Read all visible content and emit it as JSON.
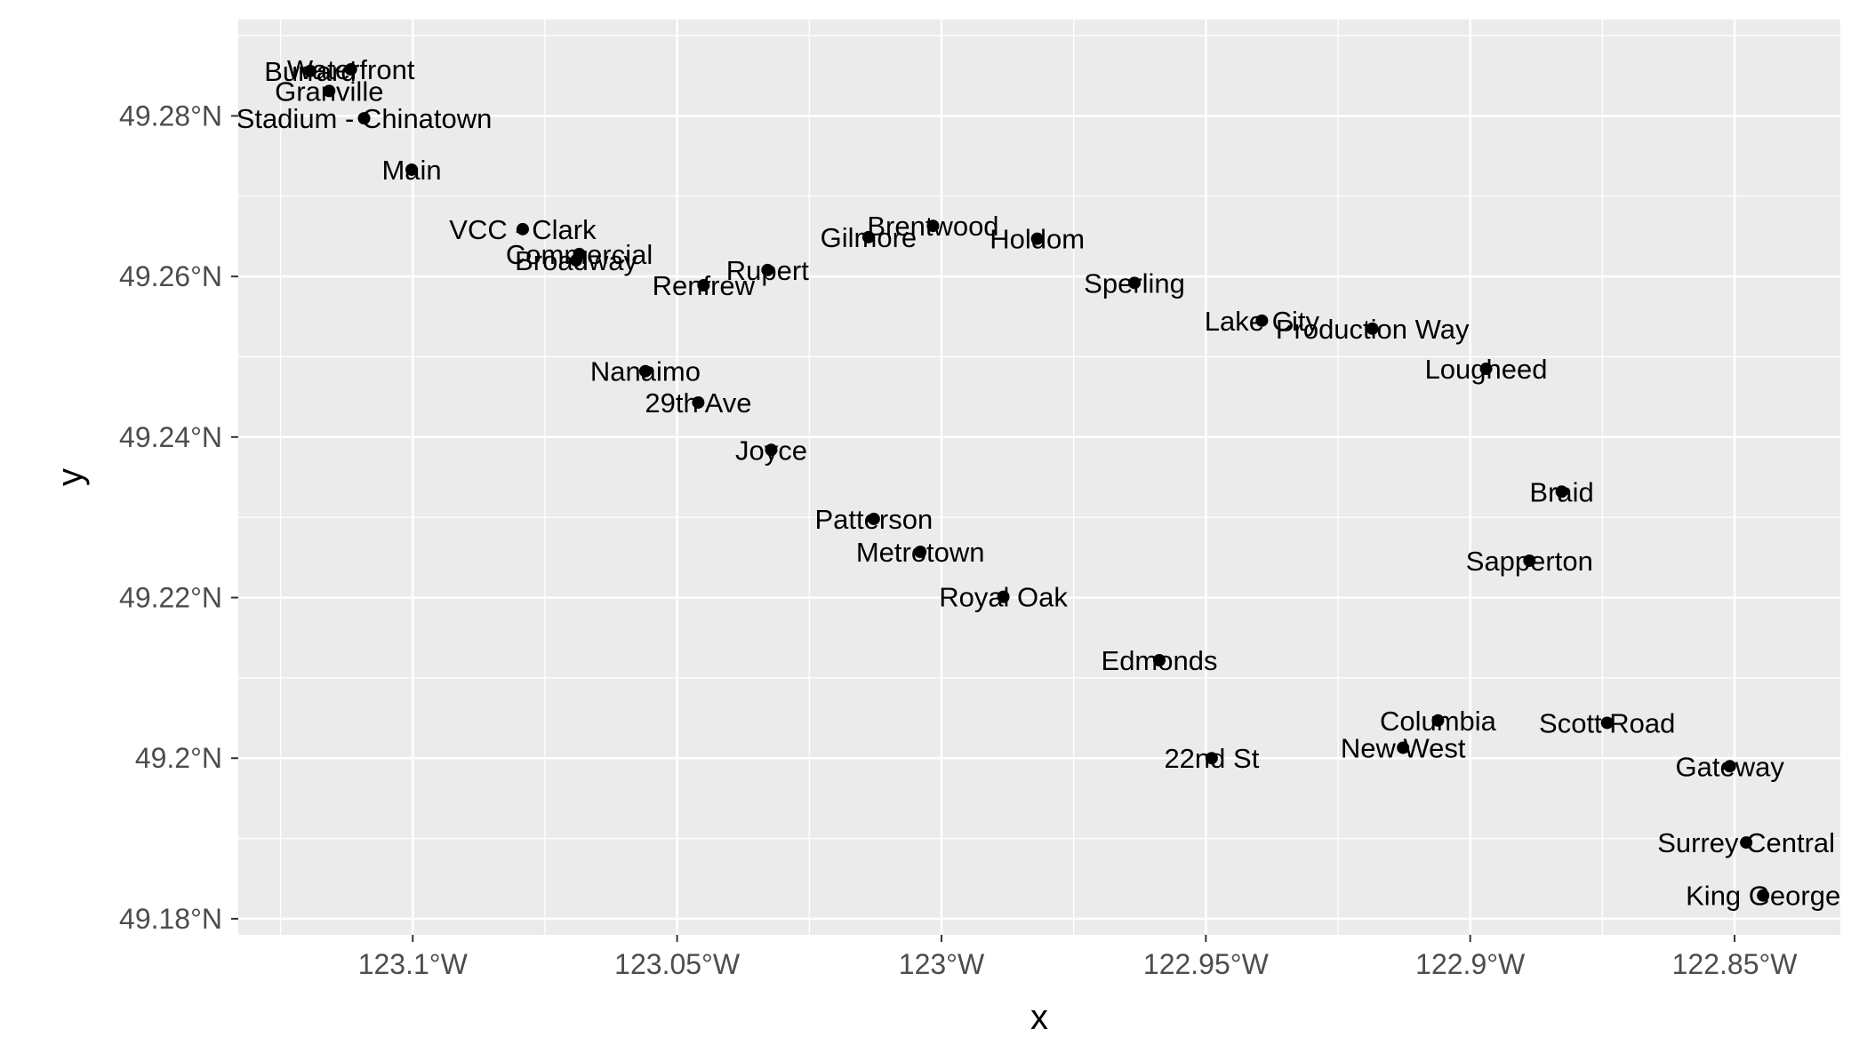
{
  "chart_data": {
    "type": "scatter",
    "xlabel": "x",
    "ylabel": "y",
    "xlim": [
      -123.133,
      -122.83
    ],
    "ylim": [
      49.178,
      49.292
    ],
    "x_ticks": [
      {
        "value": -123.1,
        "label": "123.1°W"
      },
      {
        "value": -123.05,
        "label": "123.05°W"
      },
      {
        "value": -123.0,
        "label": "123°W"
      },
      {
        "value": -122.95,
        "label": "122.95°W"
      },
      {
        "value": -122.9,
        "label": "122.9°W"
      },
      {
        "value": -122.85,
        "label": "122.85°W"
      }
    ],
    "y_ticks": [
      {
        "value": 49.18,
        "label": "49.18°N"
      },
      {
        "value": 49.2,
        "label": "49.2°N"
      },
      {
        "value": 49.22,
        "label": "49.22°N"
      },
      {
        "value": 49.24,
        "label": "49.24°N"
      },
      {
        "value": 49.26,
        "label": "49.26°N"
      },
      {
        "value": 49.28,
        "label": "49.28°N"
      }
    ],
    "grid": true,
    "background_color": "#ebebeb",
    "grid_color": "#ffffff",
    "point_color": "#000000",
    "points": [
      {
        "name": "Waterfront",
        "x": -123.1117,
        "y": 49.2858
      },
      {
        "name": "Burrard",
        "x": -123.1194,
        "y": 49.2856
      },
      {
        "name": "Granville",
        "x": -123.1158,
        "y": 49.2831
      },
      {
        "name": "Stadium - Chinatown",
        "x": -123.1092,
        "y": 49.2797
      },
      {
        "name": "Main",
        "x": -123.1002,
        "y": 49.2733
      },
      {
        "name": "VCC - Clark",
        "x": -123.0792,
        "y": 49.2659
      },
      {
        "name": "Commercial",
        "x": -123.0685,
        "y": 49.2628
      },
      {
        "name": "Broadway",
        "x": -123.0691,
        "y": 49.262
      },
      {
        "name": "Renfrew",
        "x": -123.045,
        "y": 49.2589
      },
      {
        "name": "Rupert",
        "x": -123.0329,
        "y": 49.2608
      },
      {
        "name": "Gilmore",
        "x": -123.0138,
        "y": 49.2649
      },
      {
        "name": "Brentwood",
        "x": -123.0016,
        "y": 49.2663
      },
      {
        "name": "Holdom",
        "x": -122.9819,
        "y": 49.2647
      },
      {
        "name": "Sperling",
        "x": -122.9635,
        "y": 49.2592
      },
      {
        "name": "Lake City",
        "x": -122.9394,
        "y": 49.2545
      },
      {
        "name": "Production Way",
        "x": -122.9185,
        "y": 49.2535
      },
      {
        "name": "Lougheed",
        "x": -122.897,
        "y": 49.2485
      },
      {
        "name": "Nanaimo",
        "x": -123.056,
        "y": 49.2482
      },
      {
        "name": "29th Ave",
        "x": -123.046,
        "y": 49.2443
      },
      {
        "name": "Joyce",
        "x": -123.0322,
        "y": 49.2384
      },
      {
        "name": "Patterson",
        "x": -123.0128,
        "y": 49.2298
      },
      {
        "name": "Metrotown",
        "x": -123.004,
        "y": 49.2257
      },
      {
        "name": "Royal Oak",
        "x": -122.9883,
        "y": 49.2201
      },
      {
        "name": "Edmonds",
        "x": -122.9588,
        "y": 49.2122
      },
      {
        "name": "22nd St",
        "x": -122.9489,
        "y": 49.2
      },
      {
        "name": "New West",
        "x": -122.9127,
        "y": 49.2013
      },
      {
        "name": "Columbia",
        "x": -122.9061,
        "y": 49.2047
      },
      {
        "name": "Scott Road",
        "x": -122.8741,
        "y": 49.2044
      },
      {
        "name": "Gateway",
        "x": -122.8509,
        "y": 49.199
      },
      {
        "name": "Surrey Central",
        "x": -122.8478,
        "y": 49.1895
      },
      {
        "name": "King George",
        "x": -122.8446,
        "y": 49.1829
      },
      {
        "name": "Braid",
        "x": -122.8827,
        "y": 49.2332
      },
      {
        "name": "Sapperton",
        "x": -122.8888,
        "y": 49.2246
      }
    ]
  }
}
